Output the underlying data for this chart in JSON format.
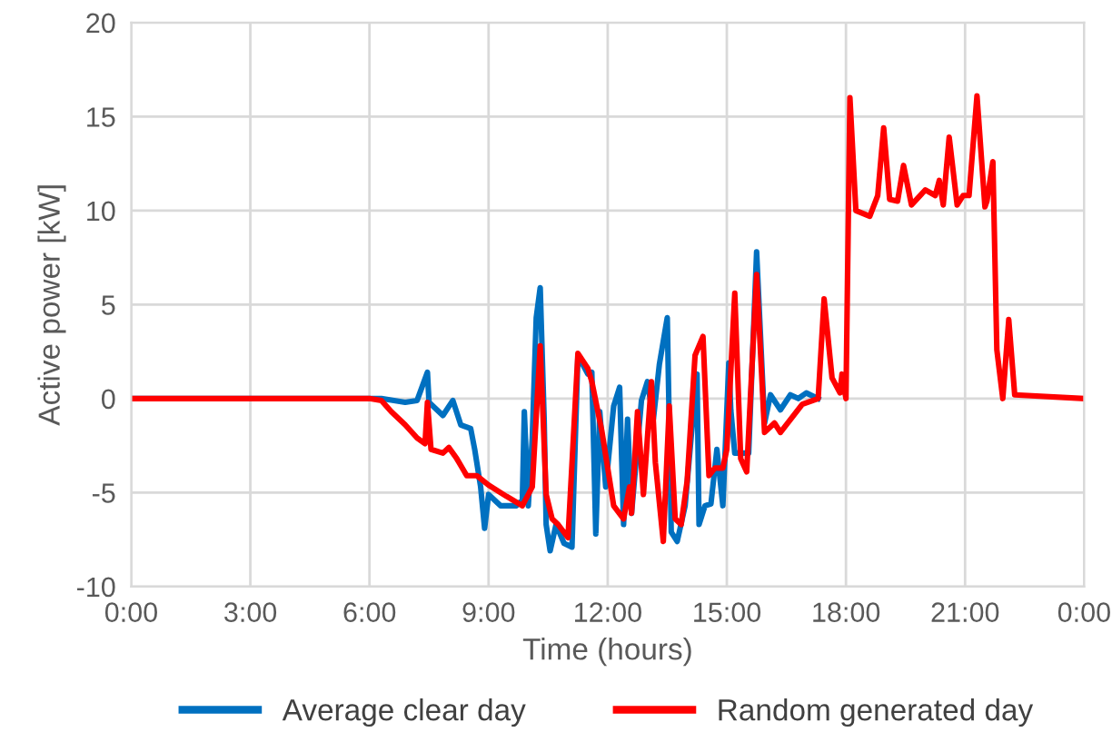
{
  "chart_data": {
    "type": "line",
    "xlabel": "Time (hours)",
    "ylabel": "Active power [kW]",
    "xlim": [
      0,
      24
    ],
    "xticks": [
      {
        "value": 0,
        "label": "0:00"
      },
      {
        "value": 3,
        "label": "3:00"
      },
      {
        "value": 6,
        "label": "6:00"
      },
      {
        "value": 9,
        "label": "9:00"
      },
      {
        "value": 12,
        "label": "12:00"
      },
      {
        "value": 15,
        "label": "15:00"
      },
      {
        "value": 18,
        "label": "18:00"
      },
      {
        "value": 21,
        "label": "21:00"
      },
      {
        "value": 24,
        "label": "0:00"
      }
    ],
    "ylim": [
      -10,
      20
    ],
    "yticks": [
      -10,
      -5,
      0,
      5,
      10,
      15,
      20
    ],
    "grid": true,
    "legend": "bottom",
    "marker": "none",
    "line_style": "solid",
    "series": [
      {
        "name": "Average clear day",
        "color": "#0070c0",
        "x": [
          0,
          6,
          6.3,
          6.9,
          7.2,
          7.46,
          7.5,
          7.85,
          8.1,
          8.3,
          8.55,
          8.65,
          8.8,
          8.9,
          9.0,
          9.3,
          9.7,
          9.85,
          9.9,
          10.0,
          10.1,
          10.2,
          10.3,
          10.4,
          10.45,
          10.55,
          10.7,
          10.9,
          11.1,
          11.25,
          11.5,
          11.6,
          11.7,
          11.8,
          11.95,
          12.15,
          12.3,
          12.4,
          12.5,
          12.6,
          12.85,
          13.0,
          13.15,
          13.3,
          13.5,
          13.6,
          13.75,
          13.95,
          14.1,
          14.25,
          14.3,
          14.45,
          14.6,
          14.75,
          14.9,
          15.05,
          15.1,
          15.2,
          15.55,
          15.75,
          15.95,
          16.1,
          16.35,
          16.6,
          16.8,
          17.0,
          17.3
        ],
        "values": [
          0,
          0,
          0,
          -0.2,
          -0.1,
          1.4,
          -0.2,
          -0.9,
          -0.1,
          -1.4,
          -1.6,
          -2.7,
          -4.7,
          -6.9,
          -5.1,
          -5.7,
          -5.7,
          -5.4,
          -0.7,
          -5.7,
          -2.1,
          4.3,
          5.9,
          -1.1,
          -6.7,
          -8.1,
          -6.7,
          -7.7,
          -7.9,
          2.3,
          1.3,
          1.4,
          -7.2,
          -0.7,
          -4.7,
          -0.4,
          0.6,
          -6.7,
          -1.1,
          -6.1,
          -0.1,
          0.9,
          -1.1,
          1.8,
          4.3,
          -7.1,
          -7.6,
          -5.7,
          -2.1,
          1.3,
          -6.7,
          -5.7,
          -5.6,
          -2.7,
          -5.7,
          1.9,
          -0.6,
          -2.9,
          -2.9,
          7.8,
          -1.3,
          0.2,
          -0.6,
          0.2,
          0,
          0.3,
          0
        ]
      },
      {
        "name": "Random generated day",
        "color": "#ff0000",
        "x": [
          0,
          6,
          6.3,
          6.55,
          6.9,
          7.2,
          7.4,
          7.46,
          7.55,
          7.85,
          8.0,
          8.2,
          8.45,
          8.7,
          9.0,
          9.45,
          9.85,
          10.1,
          10.3,
          10.45,
          10.6,
          10.75,
          11.0,
          11.25,
          11.5,
          11.6,
          11.85,
          12.15,
          12.4,
          12.55,
          12.6,
          12.75,
          12.9,
          13.1,
          13.2,
          13.4,
          13.55,
          13.7,
          13.85,
          14.0,
          14.2,
          14.4,
          14.55,
          14.7,
          14.9,
          15.0,
          15.2,
          15.35,
          15.5,
          15.75,
          15.95,
          16.2,
          16.35,
          16.9,
          17.3,
          17.45,
          17.65,
          17.85,
          17.9,
          18.0,
          18.1,
          18.25,
          18.6,
          18.8,
          18.95,
          19.1,
          19.3,
          19.45,
          19.65,
          20.0,
          20.25,
          20.35,
          20.45,
          20.6,
          20.8,
          20.95,
          21.1,
          21.3,
          21.5,
          21.55,
          21.7,
          21.8,
          21.95,
          22.1,
          22.25,
          24
        ],
        "values": [
          0,
          0,
          -0.1,
          -0.7,
          -1.4,
          -2.1,
          -2.4,
          -0.2,
          -2.7,
          -2.9,
          -2.6,
          -3.2,
          -4.1,
          -4.1,
          -4.6,
          -5.2,
          -5.7,
          -4.7,
          2.8,
          -5.1,
          -6.4,
          -6.7,
          -7.4,
          2.4,
          1.6,
          0.9,
          -1.7,
          -5.7,
          -6.4,
          -4.7,
          -6.1,
          -0.7,
          -5.1,
          0.9,
          -3.4,
          -7.6,
          -0.4,
          -6.4,
          -6.7,
          -4.4,
          2.3,
          3.3,
          -4.1,
          -3.7,
          -3.7,
          -2.7,
          5.6,
          -3.2,
          -3.9,
          6.6,
          -1.8,
          -1.3,
          -1.8,
          -0.3,
          0,
          5.3,
          1.1,
          0.3,
          1.3,
          0,
          16.0,
          10,
          9.7,
          10.8,
          14.4,
          10.6,
          10.5,
          12.4,
          10.3,
          11.1,
          10.8,
          11.6,
          10.3,
          13.9,
          10.3,
          10.8,
          10.8,
          16.1,
          10.2,
          10.5,
          12.6,
          2.6,
          0,
          4.2,
          0.2,
          0
        ]
      }
    ]
  }
}
